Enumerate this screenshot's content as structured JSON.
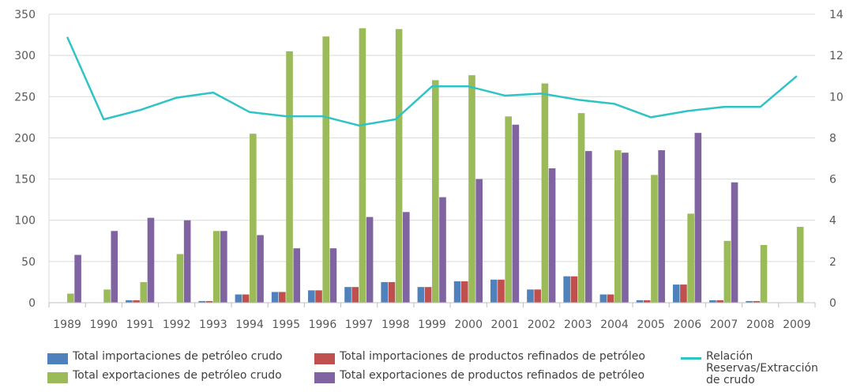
{
  "colors": {
    "imp_crudo": "#4F81BD",
    "imp_refinados": "#C0504D",
    "exp_crudo": "#9BBB59",
    "exp_refinados": "#8064A2",
    "relacion": "#2EC4C6",
    "grid": "#D9D9D9",
    "text": "#595959"
  },
  "chart_data": {
    "type": "bar",
    "categories": [
      "1989",
      "1990",
      "1991",
      "1992",
      "1993",
      "1994",
      "1995",
      "1996",
      "1997",
      "1998",
      "1999",
      "2000",
      "2001",
      "2002",
      "2003",
      "2004",
      "2005",
      "2006",
      "2007",
      "2008",
      "2009"
    ],
    "ylim": [
      0,
      350
    ],
    "y_ticks": [
      "0",
      "50",
      "100",
      "150",
      "200",
      "250",
      "300",
      "350"
    ],
    "y2lim": [
      0,
      14
    ],
    "y2_ticks": [
      "0",
      "2",
      "4",
      "6",
      "8",
      "10",
      "12",
      "14"
    ],
    "grid": true,
    "legend_position": "bottom",
    "series": [
      {
        "name": "Total importaciones de petróleo crudo",
        "key": "imp_crudo",
        "type": "bar",
        "values": [
          0,
          0,
          3,
          0,
          2,
          10,
          13,
          15,
          19,
          25,
          19,
          26,
          28,
          16,
          32,
          10,
          3,
          22,
          3,
          2,
          0
        ]
      },
      {
        "name": "Total importaciones de productos refinados de petróleo",
        "key": "imp_refinados",
        "type": "bar",
        "values": [
          0,
          0,
          3,
          0,
          2,
          10,
          13,
          15,
          19,
          25,
          19,
          26,
          28,
          16,
          32,
          10,
          3,
          22,
          3,
          2,
          0
        ]
      },
      {
        "name": "Total exportaciones de petróleo crudo",
        "key": "exp_crudo",
        "type": "bar",
        "values": [
          11,
          16,
          25,
          59,
          87,
          205,
          305,
          323,
          333,
          332,
          270,
          276,
          226,
          266,
          230,
          185,
          155,
          108,
          75,
          70,
          92
        ]
      },
      {
        "name": "Total exportaciones de productos refinados de petróleo",
        "key": "exp_refinados",
        "type": "bar",
        "values": [
          58,
          87,
          103,
          100,
          87,
          82,
          66,
          66,
          104,
          110,
          128,
          150,
          216,
          163,
          184,
          182,
          185,
          206,
          146,
          0,
          0
        ]
      },
      {
        "name": "Relación Reservas/Extracción de crudo",
        "key": "relacion",
        "type": "line",
        "axis": "right",
        "values": [
          12.9,
          8.9,
          9.35,
          9.95,
          10.2,
          9.25,
          9.05,
          9.05,
          8.6,
          8.9,
          10.5,
          10.5,
          10.05,
          10.15,
          9.85,
          9.65,
          9.0,
          9.3,
          9.5,
          9.5,
          11.0
        ]
      }
    ]
  },
  "legend": {
    "imp_crudo": "Total importaciones de petróleo crudo",
    "imp_refinados": "Total importaciones de productos refinados de petróleo",
    "relacion": "Relación Reservas/Extracción de crudo",
    "relacion_lines": [
      "Relación",
      "Reservas/Extracción",
      "de crudo"
    ],
    "exp_crudo": "Total exportaciones de petróleo crudo",
    "exp_refinados": "Total exportaciones de productos refinados de petróleo"
  }
}
